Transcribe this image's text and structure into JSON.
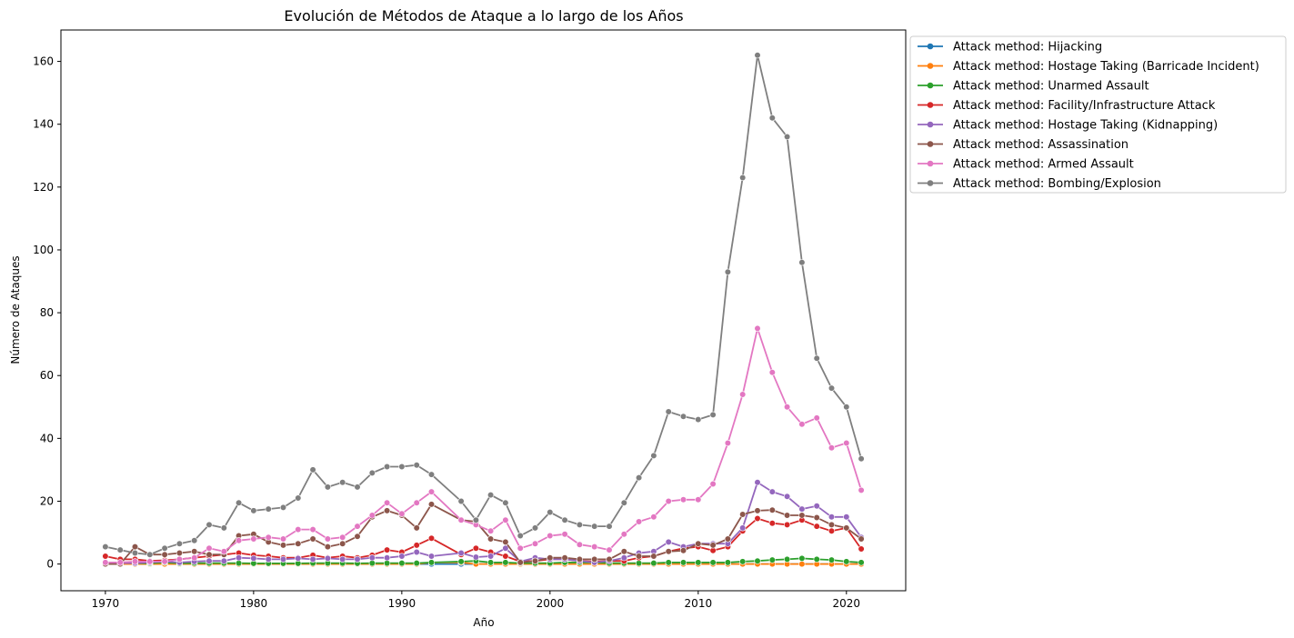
{
  "chart_data": {
    "type": "line",
    "title": "Evolución de Métodos de Ataque a lo largo de los Años",
    "xlabel": "Año",
    "ylabel": "Número de Ataques",
    "xlim": [
      1967,
      2024
    ],
    "ylim": [
      -8.5,
      170
    ],
    "xticks": [
      1970,
      1980,
      1990,
      2000,
      2010,
      2020
    ],
    "yticks": [
      0,
      20,
      40,
      60,
      80,
      100,
      120,
      140,
      160
    ],
    "grid": false,
    "legend_position": "outside-top-right",
    "x": [
      1970,
      1971,
      1972,
      1973,
      1974,
      1975,
      1976,
      1977,
      1978,
      1979,
      1980,
      1981,
      1982,
      1983,
      1984,
      1985,
      1986,
      1987,
      1988,
      1989,
      1990,
      1991,
      1992,
      1994,
      1995,
      1996,
      1997,
      1998,
      1999,
      2000,
      2001,
      2002,
      2003,
      2004,
      2005,
      2006,
      2007,
      2008,
      2009,
      2010,
      2011,
      2012,
      2013,
      2014,
      2015,
      2016,
      2017,
      2018,
      2019,
      2020,
      2021
    ],
    "series": [
      {
        "name": "Attack method: Hijacking",
        "color": "#1f77b4",
        "values": [
          0,
          0,
          0,
          0,
          0,
          0,
          0,
          0,
          0,
          0,
          0,
          0,
          0,
          0,
          0,
          0,
          0,
          0,
          0,
          0,
          0,
          0,
          0,
          0,
          0,
          0,
          0,
          0,
          0,
          0,
          0,
          0,
          0,
          0,
          0,
          0,
          0,
          0,
          0,
          0,
          0,
          0,
          0,
          0,
          0,
          0,
          0,
          0,
          0,
          0,
          0
        ]
      },
      {
        "name": "Attack method: Hostage Taking (Barricade Incident)",
        "color": "#ff7f0e",
        "values": [
          0,
          0,
          0,
          0,
          0,
          0,
          0,
          0,
          0,
          0,
          0,
          0,
          0,
          0,
          0,
          0,
          0,
          0,
          0,
          0,
          0,
          0,
          0.5,
          0.5,
          0,
          0,
          0,
          0,
          0,
          0,
          0,
          0,
          0,
          0,
          0,
          0,
          0,
          0,
          0,
          0,
          0,
          0,
          0,
          0,
          0,
          0,
          0,
          0,
          0,
          0,
          0
        ]
      },
      {
        "name": "Attack method: Unarmed Assault",
        "color": "#2ca02c",
        "values": [
          0.5,
          0.3,
          0.3,
          0.2,
          0.5,
          0.2,
          0.3,
          0.3,
          0.3,
          0.3,
          0.2,
          0.2,
          0.2,
          0.2,
          0.3,
          0.3,
          0.3,
          0.2,
          0.3,
          0.3,
          0.3,
          0.3,
          0.5,
          0.8,
          1,
          0.5,
          0.5,
          0.3,
          0.3,
          0.3,
          0.5,
          0.5,
          0.5,
          0.3,
          0.3,
          0.3,
          0.3,
          0.5,
          0.5,
          0.5,
          0.5,
          0.5,
          0.8,
          1,
          1.3,
          1.5,
          1.8,
          1.5,
          1.3,
          0.8,
          0.5
        ]
      },
      {
        "name": "Attack method: Facility/Infrastructure Attack",
        "color": "#d62728",
        "values": [
          2.5,
          1.5,
          1.5,
          1,
          1.2,
          1.5,
          2,
          2.5,
          3,
          3.5,
          2.8,
          2.5,
          2,
          2,
          2.8,
          2,
          2.5,
          2,
          2.8,
          4.5,
          3.8,
          6,
          8.2,
          3,
          5,
          3.8,
          2.5,
          0.8,
          1,
          1.5,
          1.5,
          1,
          0.8,
          1,
          1,
          2,
          2.5,
          4,
          5,
          5.5,
          4.3,
          5.5,
          10.5,
          14.5,
          13,
          12.5,
          14,
          12,
          10.5,
          11.5,
          4.8
        ]
      },
      {
        "name": "Attack method: Hostage Taking (Kidnapping)",
        "color": "#9467bd",
        "values": [
          0.5,
          0.3,
          0.3,
          0.5,
          0.8,
          0.5,
          0.8,
          1,
          1,
          2,
          1.8,
          1.5,
          1.5,
          1.8,
          1.5,
          1.8,
          1.5,
          1.5,
          2,
          2,
          2.5,
          3.8,
          2.5,
          3.5,
          2.2,
          2.5,
          5,
          0.8,
          2,
          1.5,
          1.5,
          1,
          0.5,
          1,
          2,
          3.5,
          4,
          7,
          5.5,
          6.5,
          6.5,
          6.5,
          11.5,
          26,
          23,
          21.5,
          17.5,
          18.5,
          15,
          15,
          8.5
        ]
      },
      {
        "name": "Attack method: Assassination",
        "color": "#8c564b",
        "values": [
          0,
          0,
          5.5,
          3,
          3,
          3.5,
          4,
          3,
          3,
          9,
          9.5,
          7,
          6,
          6.5,
          8,
          5.5,
          6.5,
          8.8,
          15,
          17,
          15.5,
          11.5,
          19,
          14,
          13.5,
          8,
          7,
          0.5,
          1,
          2,
          2,
          1.5,
          1.5,
          1.5,
          4,
          2.5,
          2.5,
          4,
          4.3,
          6.5,
          6,
          8,
          15.8,
          17,
          17.2,
          15.5,
          15.5,
          14.8,
          12.5,
          11.5,
          8
        ]
      },
      {
        "name": "Attack method: Armed Assault",
        "color": "#e377c2",
        "values": [
          0.5,
          0.5,
          0.8,
          0.8,
          0.8,
          1.5,
          2,
          5,
          4,
          7.5,
          8,
          8.5,
          8,
          11,
          11,
          8,
          8.5,
          12,
          15.5,
          19.5,
          16,
          19.5,
          23,
          14,
          12.5,
          10.5,
          14,
          5,
          6.5,
          9,
          9.5,
          6.2,
          5.5,
          4.5,
          9.5,
          13.5,
          15,
          20,
          20.5,
          20.5,
          25.5,
          38.5,
          54,
          75,
          61,
          50,
          44.5,
          46.5,
          37,
          38.5,
          23.5
        ]
      },
      {
        "name": "Attack method: Bombing/Explosion",
        "color": "#7f7f7f",
        "values": [
          5.5,
          4.5,
          3.5,
          3,
          5,
          6.5,
          7.5,
          12.5,
          11.5,
          19.5,
          17,
          17.5,
          18,
          21,
          30,
          24.5,
          26,
          24.5,
          29,
          31,
          31,
          31.5,
          28.5,
          20,
          14,
          22,
          19.5,
          9,
          11.5,
          16.5,
          14,
          12.5,
          12,
          12,
          19.5,
          27.5,
          34.5,
          48.5,
          47,
          46,
          47.5,
          93,
          123,
          162,
          142,
          136,
          96,
          65.5,
          56,
          50,
          33.5
        ]
      }
    ]
  }
}
